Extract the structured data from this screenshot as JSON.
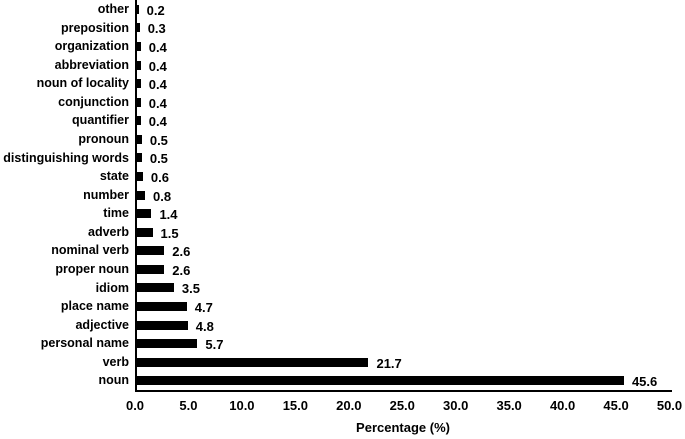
{
  "chart_data": {
    "type": "bar",
    "orientation": "horizontal",
    "title": "",
    "xlabel": "Percentage (%)",
    "ylabel": "",
    "xlim": [
      0,
      50
    ],
    "xticks": [
      "0.0",
      "5.0",
      "10.0",
      "15.0",
      "20.0",
      "25.0",
      "30.0",
      "35.0",
      "40.0",
      "45.0",
      "50.0"
    ],
    "grid": false,
    "legend": false,
    "bar_color": "#000000",
    "value_labels_shown": true,
    "categories": [
      "other",
      "preposition",
      "organization",
      "abbreviation",
      "noun of locality",
      "conjunction",
      "quantifier",
      "pronoun",
      "distinguishing words",
      "state",
      "number",
      "time",
      "adverb",
      "nominal verb",
      "proper noun",
      "idiom",
      "place name",
      "adjective",
      "personal name",
      "verb",
      "noun"
    ],
    "values": [
      0.2,
      0.3,
      0.4,
      0.4,
      0.4,
      0.4,
      0.4,
      0.5,
      0.5,
      0.6,
      0.8,
      1.4,
      1.5,
      2.6,
      2.6,
      3.5,
      4.7,
      4.8,
      5.7,
      21.7,
      45.6
    ],
    "value_labels": [
      "0.2",
      "0.3",
      "0.4",
      "0.4",
      "0.4",
      "0.4",
      "0.4",
      "0.5",
      "0.5",
      "0.6",
      "0.8",
      "1.4",
      "1.5",
      "2.6",
      "2.6",
      "3.5",
      "4.7",
      "4.8",
      "5.7",
      "21.7",
      "45.6"
    ]
  }
}
